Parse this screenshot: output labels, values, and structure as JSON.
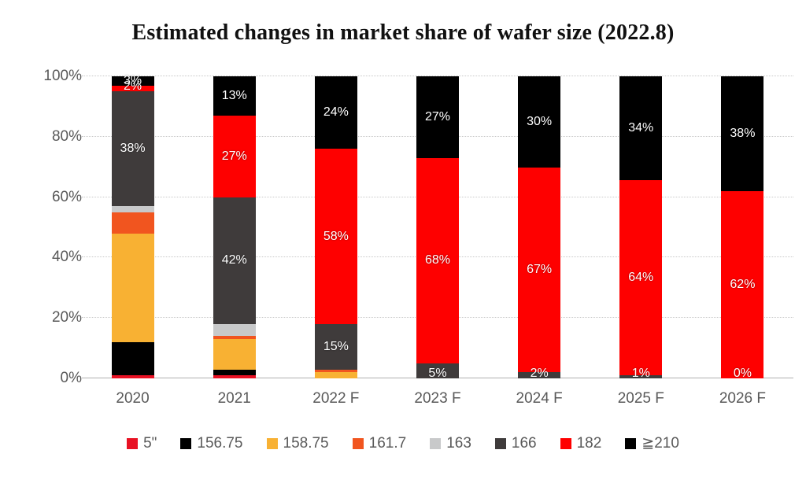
{
  "title": "Estimated changes in market share of wafer size (2022.8)",
  "colors": {
    "grid": "#c9c9c9",
    "axis_line": "#b0b0b0",
    "axis_text": "#595959",
    "bar_label_text": "#ffffff",
    "title_text": "#111111"
  },
  "chart_data": {
    "type": "bar",
    "subtype": "stacked-100",
    "title": "Estimated changes in market share of wafer size (2022.8)",
    "xlabel": "",
    "ylabel": "",
    "ylim": [
      0,
      100
    ],
    "y_ticks": [
      0,
      20,
      40,
      60,
      80,
      100
    ],
    "y_tick_labels": [
      "0%",
      "20%",
      "40%",
      "60%",
      "80%",
      "100%"
    ],
    "grid": true,
    "legend_position": "bottom",
    "categories": [
      "2020",
      "2021",
      "2022 F",
      "2023 F",
      "2024 F",
      "2025 F",
      "2026 F"
    ],
    "series": [
      {
        "name": "5\"",
        "color": "#e81123",
        "show_labels": false,
        "values": [
          1,
          1,
          0,
          0,
          0,
          0,
          0
        ]
      },
      {
        "name": "156.75",
        "color": "#000000",
        "show_labels": false,
        "values": [
          11,
          2,
          0,
          0,
          0,
          0,
          0
        ]
      },
      {
        "name": "158.75",
        "color": "#f8b133",
        "show_labels": false,
        "values": [
          36,
          10,
          2,
          0,
          0,
          0,
          0
        ]
      },
      {
        "name": "161.7",
        "color": "#f1551f",
        "show_labels": false,
        "values": [
          7,
          1,
          1,
          0,
          0,
          0,
          0
        ]
      },
      {
        "name": "163",
        "color": "#c8c9ca",
        "show_labels": false,
        "values": [
          2,
          4,
          0,
          0,
          0,
          0,
          0
        ]
      },
      {
        "name": "166",
        "color": "#3f3b3b",
        "show_labels": true,
        "values": [
          38,
          42,
          15,
          5,
          2,
          1,
          0
        ]
      },
      {
        "name": "182",
        "color": "#fe0000",
        "show_labels": true,
        "values": [
          2,
          27,
          58,
          68,
          67,
          64,
          62
        ]
      },
      {
        "name": "≧210",
        "color": "#000000",
        "show_labels": true,
        "values": [
          3,
          13,
          24,
          27,
          30,
          34,
          38
        ]
      }
    ]
  }
}
